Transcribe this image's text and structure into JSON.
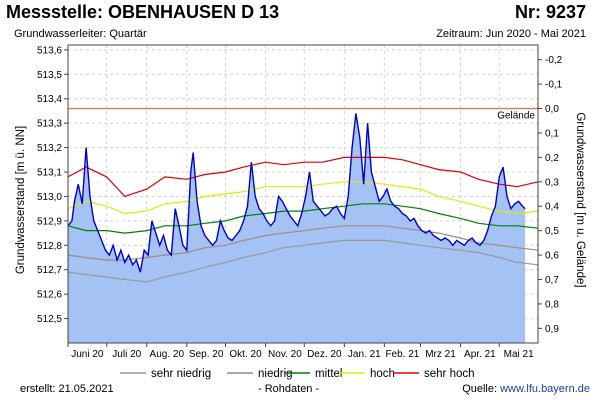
{
  "header": {
    "title": "Messstelle: OBENHAUSEN D 13",
    "nr": "Nr: 9237",
    "aquifer": "Grundwasserleiter: Quartär",
    "period": "Zeitraum: Jun 2020 - Mai 2021"
  },
  "footer": {
    "created": "erstellt:  21.05.2021",
    "raw": "- Rohdaten -",
    "source_prefix": "Quelle: ",
    "source_link": "www.lfu.bayern.de"
  },
  "colors": {
    "fill": "#a4c2f4",
    "measured": "#0000cc",
    "sehr_niedrig": "#999999",
    "niedrig": "#a08a82",
    "mittel": "#008000",
    "hoch": "#e8e800",
    "sehr_hoch": "#dd0000",
    "gelaende": "#e07050"
  },
  "chart_data": {
    "type": "line",
    "ylabel": "Grundwasserstand [m ü. NN]",
    "y2label": "Grundwasserstand [m u. Gelände]",
    "ylim": [
      512.4,
      513.62
    ],
    "y2lim": [
      -0.26,
      0.96
    ],
    "yticks": [
      "513,6",
      "513,5",
      "513,4",
      "513,3",
      "513,2",
      "513,1",
      "513,0",
      "512,9",
      "512,8",
      "512,7",
      "512,6",
      "512,5"
    ],
    "y2ticks": [
      "-0,2",
      "-0,1",
      "0,0",
      "0,1",
      "0,2",
      "0,3",
      "0,4",
      "0,5",
      "0,6",
      "0,7",
      "0,8",
      "0,9"
    ],
    "xlim": [
      "2020-06-01",
      "2021-05-31"
    ],
    "xticks": [
      "Juni 20",
      "Juli 20",
      "Aug. 20",
      "Sep. 20",
      "Okt. 20",
      "Nov. 20",
      "Dez. 20",
      "Jan. 21",
      "Feb. 21",
      "Mrz 21",
      "Apr. 21",
      "Mai 21"
    ],
    "gelaende": {
      "label": "Gelände",
      "value": 513.36
    },
    "legend": {
      "position": "bottom",
      "entries": [
        "sehr niedrig",
        "niedrig",
        "mittel",
        "hoch",
        "sehr hoch"
      ]
    },
    "series": [
      {
        "name": "sehr hoch",
        "dates": [
          "2020-06-01",
          "2020-06-15",
          "2020-07-01",
          "2020-07-15",
          "2020-08-01",
          "2020-08-15",
          "2020-09-01",
          "2020-09-15",
          "2020-10-01",
          "2020-10-15",
          "2020-11-01",
          "2020-11-15",
          "2020-12-01",
          "2020-12-15",
          "2021-01-01",
          "2021-01-15",
          "2021-02-01",
          "2021-02-15",
          "2021-03-01",
          "2021-03-15",
          "2021-04-01",
          "2021-04-15",
          "2021-05-01",
          "2021-05-15",
          "2021-05-31"
        ],
        "values": [
          513.08,
          513.12,
          513.08,
          513.0,
          513.03,
          513.08,
          513.07,
          513.09,
          513.1,
          513.12,
          513.14,
          513.13,
          513.14,
          513.14,
          513.16,
          513.16,
          513.16,
          513.15,
          513.13,
          513.11,
          513.1,
          513.07,
          513.05,
          513.04,
          513.06
        ]
      },
      {
        "name": "hoch",
        "dates": [
          "2020-06-01",
          "2020-06-15",
          "2020-07-01",
          "2020-07-15",
          "2020-08-01",
          "2020-08-15",
          "2020-09-01",
          "2020-09-15",
          "2020-10-01",
          "2020-10-15",
          "2020-11-01",
          "2020-11-15",
          "2020-12-01",
          "2020-12-15",
          "2021-01-01",
          "2021-01-15",
          "2021-02-01",
          "2021-02-15",
          "2021-03-01",
          "2021-03-15",
          "2021-04-01",
          "2021-04-15",
          "2021-05-01",
          "2021-05-15",
          "2021-05-31"
        ],
        "values": [
          512.95,
          512.98,
          512.96,
          512.93,
          512.94,
          512.97,
          512.98,
          513.0,
          513.01,
          513.02,
          513.04,
          513.04,
          513.04,
          513.05,
          513.06,
          513.06,
          513.05,
          513.04,
          513.03,
          513.0,
          512.98,
          512.96,
          512.94,
          512.93,
          512.94
        ]
      },
      {
        "name": "mittel",
        "dates": [
          "2020-06-01",
          "2020-06-15",
          "2020-07-01",
          "2020-07-15",
          "2020-08-01",
          "2020-08-15",
          "2020-09-01",
          "2020-09-15",
          "2020-10-01",
          "2020-10-15",
          "2020-11-01",
          "2020-11-15",
          "2020-12-01",
          "2020-12-15",
          "2021-01-01",
          "2021-01-15",
          "2021-02-01",
          "2021-02-15",
          "2021-03-01",
          "2021-03-15",
          "2021-04-01",
          "2021-04-15",
          "2021-05-01",
          "2021-05-15",
          "2021-05-31"
        ],
        "values": [
          512.88,
          512.86,
          512.86,
          512.85,
          512.86,
          512.88,
          512.88,
          512.89,
          512.9,
          512.92,
          512.93,
          512.94,
          512.94,
          512.95,
          512.96,
          512.97,
          512.97,
          512.96,
          512.95,
          512.93,
          512.91,
          512.89,
          512.88,
          512.88,
          512.87
        ]
      },
      {
        "name": "niedrig",
        "dates": [
          "2020-06-01",
          "2020-06-15",
          "2020-07-01",
          "2020-07-15",
          "2020-08-01",
          "2020-08-15",
          "2020-09-01",
          "2020-09-15",
          "2020-10-01",
          "2020-10-15",
          "2020-11-01",
          "2020-11-15",
          "2020-12-01",
          "2020-12-15",
          "2021-01-01",
          "2021-01-15",
          "2021-02-01",
          "2021-02-15",
          "2021-03-01",
          "2021-03-15",
          "2021-04-01",
          "2021-04-15",
          "2021-05-01",
          "2021-05-15",
          "2021-05-31"
        ],
        "values": [
          512.76,
          512.75,
          512.74,
          512.74,
          512.75,
          512.76,
          512.77,
          512.79,
          512.8,
          512.82,
          512.84,
          512.85,
          512.86,
          512.87,
          512.88,
          512.88,
          512.88,
          512.87,
          512.86,
          512.85,
          512.83,
          512.81,
          512.8,
          512.79,
          512.78
        ]
      },
      {
        "name": "sehr niedrig",
        "dates": [
          "2020-06-01",
          "2020-06-15",
          "2020-07-01",
          "2020-07-15",
          "2020-08-01",
          "2020-08-15",
          "2020-09-01",
          "2020-09-15",
          "2020-10-01",
          "2020-10-15",
          "2020-11-01",
          "2020-11-15",
          "2020-12-01",
          "2020-12-15",
          "2021-01-01",
          "2021-01-15",
          "2021-02-01",
          "2021-02-15",
          "2021-03-01",
          "2021-03-15",
          "2021-04-01",
          "2021-04-15",
          "2021-05-01",
          "2021-05-15",
          "2021-05-31"
        ],
        "values": [
          512.69,
          512.68,
          512.67,
          512.66,
          512.65,
          512.67,
          512.69,
          512.71,
          512.73,
          512.75,
          512.77,
          512.79,
          512.8,
          512.81,
          512.82,
          512.82,
          512.82,
          512.81,
          512.8,
          512.79,
          512.78,
          512.77,
          512.75,
          512.73,
          512.72
        ]
      },
      {
        "name": "Rohdaten",
        "dates": [
          "2020-06-01",
          "2020-06-04",
          "2020-06-06",
          "2020-06-09",
          "2020-06-12",
          "2020-06-15",
          "2020-06-18",
          "2020-06-21",
          "2020-06-24",
          "2020-06-27",
          "2020-06-30",
          "2020-07-03",
          "2020-07-06",
          "2020-07-09",
          "2020-07-12",
          "2020-07-15",
          "2020-07-18",
          "2020-07-21",
          "2020-07-24",
          "2020-07-27",
          "2020-07-30",
          "2020-08-02",
          "2020-08-05",
          "2020-08-08",
          "2020-08-11",
          "2020-08-14",
          "2020-08-17",
          "2020-08-20",
          "2020-08-23",
          "2020-08-26",
          "2020-08-29",
          "2020-09-01",
          "2020-09-04",
          "2020-09-06",
          "2020-09-09",
          "2020-09-12",
          "2020-09-15",
          "2020-09-18",
          "2020-09-21",
          "2020-09-24",
          "2020-09-27",
          "2020-09-30",
          "2020-10-03",
          "2020-10-06",
          "2020-10-09",
          "2020-10-12",
          "2020-10-15",
          "2020-10-18",
          "2020-10-21",
          "2020-10-24",
          "2020-10-27",
          "2020-10-30",
          "2020-11-02",
          "2020-11-05",
          "2020-11-08",
          "2020-11-11",
          "2020-11-14",
          "2020-11-17",
          "2020-11-20",
          "2020-11-23",
          "2020-11-26",
          "2020-11-29",
          "2020-12-02",
          "2020-12-05",
          "2020-12-08",
          "2020-12-11",
          "2020-12-14",
          "2020-12-17",
          "2020-12-20",
          "2020-12-23",
          "2020-12-26",
          "2020-12-29",
          "2021-01-01",
          "2021-01-04",
          "2021-01-07",
          "2021-01-10",
          "2021-01-13",
          "2021-01-16",
          "2021-01-19",
          "2021-01-22",
          "2021-01-25",
          "2021-01-28",
          "2021-01-31",
          "2021-02-03",
          "2021-02-06",
          "2021-02-09",
          "2021-02-12",
          "2021-02-15",
          "2021-02-18",
          "2021-02-21",
          "2021-02-24",
          "2021-02-27",
          "2021-03-02",
          "2021-03-05",
          "2021-03-08",
          "2021-03-11",
          "2021-03-14",
          "2021-03-17",
          "2021-03-20",
          "2021-03-23",
          "2021-03-26",
          "2021-03-29",
          "2021-04-01",
          "2021-04-04",
          "2021-04-07",
          "2021-04-10",
          "2021-04-13",
          "2021-04-16",
          "2021-04-19",
          "2021-04-22",
          "2021-04-25",
          "2021-04-28",
          "2021-05-01",
          "2021-05-04",
          "2021-05-07",
          "2021-05-10",
          "2021-05-13",
          "2021-05-16",
          "2021-05-19",
          "2021-05-21"
        ],
        "values": [
          512.88,
          512.9,
          512.98,
          513.05,
          512.97,
          513.2,
          513.0,
          512.9,
          512.86,
          512.82,
          512.78,
          512.76,
          512.8,
          512.74,
          512.78,
          512.73,
          512.76,
          512.72,
          512.74,
          512.69,
          512.78,
          512.76,
          512.9,
          512.85,
          512.8,
          512.84,
          512.78,
          512.76,
          512.95,
          512.88,
          512.8,
          512.78,
          513.1,
          513.18,
          512.98,
          512.88,
          512.84,
          512.82,
          512.8,
          512.82,
          512.9,
          512.86,
          512.83,
          512.82,
          512.84,
          512.86,
          512.9,
          512.96,
          513.14,
          513.0,
          512.95,
          512.93,
          512.9,
          512.88,
          512.9,
          513.0,
          512.98,
          512.95,
          512.92,
          512.9,
          512.88,
          512.93,
          513.0,
          513.1,
          512.98,
          512.96,
          512.94,
          512.92,
          512.93,
          512.95,
          512.96,
          512.93,
          512.91,
          513.0,
          513.2,
          513.34,
          513.24,
          513.05,
          513.3,
          513.1,
          513.04,
          512.98,
          513.0,
          513.03,
          512.98,
          512.96,
          512.95,
          512.93,
          512.92,
          512.9,
          512.91,
          512.88,
          512.86,
          512.85,
          512.86,
          512.84,
          512.83,
          512.82,
          512.83,
          512.82,
          512.8,
          512.82,
          512.81,
          512.8,
          512.82,
          512.83,
          512.81,
          512.8,
          512.82,
          512.86,
          512.92,
          512.96,
          513.08,
          513.12,
          513.0,
          512.95,
          512.97,
          512.98,
          512.96,
          512.95
        ]
      }
    ]
  }
}
